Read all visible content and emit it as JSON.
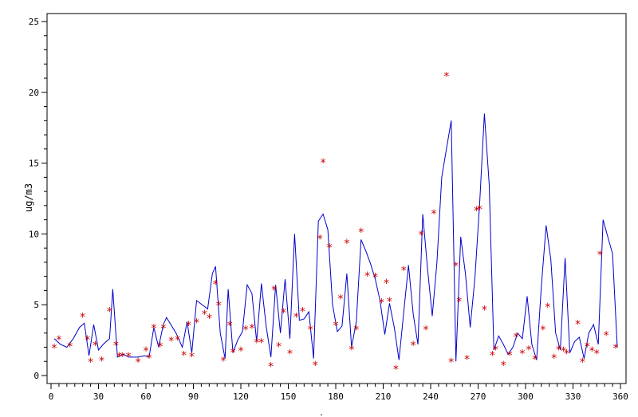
{
  "chart_data": {
    "type": "line",
    "title": "",
    "xlabel": "",
    "ylabel": "ug/m3",
    "xlim": [
      0,
      360
    ],
    "ylim": [
      0,
      25
    ],
    "x_ticks": [
      "0",
      "30",
      "60",
      "90",
      "120",
      "150",
      "180",
      "210",
      "240",
      "270",
      "300",
      "330",
      "360"
    ],
    "y_ticks": [
      "0",
      "5",
      "10",
      "15",
      "20",
      "25"
    ],
    "grid": false,
    "legend": "none",
    "series": [
      {
        "kind": "line",
        "color": "#0000cc",
        "x": [
          2,
          6,
          10,
          14,
          18,
          21,
          24,
          27,
          30,
          33,
          37,
          39,
          42,
          46,
          49,
          55,
          59,
          62,
          65,
          68,
          71,
          73,
          79,
          83,
          86,
          89,
          92,
          99,
          102,
          104,
          107,
          110,
          112,
          115,
          118,
          121,
          124,
          127,
          130,
          133,
          136,
          139,
          142,
          145,
          148,
          151,
          154,
          157,
          160,
          163,
          166,
          169,
          172,
          175,
          178,
          181,
          184,
          187,
          190,
          193,
          196,
          199,
          202,
          205,
          208,
          211,
          214,
          217,
          220,
          223,
          226,
          229,
          232,
          235,
          238,
          241,
          244,
          247,
          250,
          253,
          256,
          259,
          262,
          265,
          268,
          271,
          274,
          277,
          280,
          283,
          286,
          289,
          292,
          295,
          298,
          301,
          304,
          307,
          310,
          313,
          316,
          319,
          322,
          325,
          328,
          331,
          334,
          337,
          340,
          343,
          346,
          349,
          352,
          355,
          358
        ],
        "y": [
          2.6,
          2.2,
          2.0,
          2.6,
          3.4,
          3.7,
          1.4,
          3.6,
          1.8,
          2.2,
          2.6,
          6.1,
          1.3,
          1.5,
          1.3,
          1.3,
          1.4,
          1.3,
          3.4,
          2.0,
          3.6,
          4.1,
          3.0,
          2.0,
          3.8,
          1.6,
          5.3,
          4.7,
          7.2,
          7.7,
          3.0,
          1.2,
          6.1,
          1.6,
          2.5,
          3.1,
          6.4,
          5.8,
          2.4,
          6.5,
          3.5,
          1.3,
          6.4,
          3.0,
          6.8,
          2.6,
          10.0,
          3.9,
          4.0,
          4.5,
          1.2,
          10.9,
          11.4,
          10.3,
          5.0,
          3.1,
          3.5,
          7.2,
          2.0,
          3.8,
          9.6,
          8.8,
          7.9,
          6.8,
          5.3,
          2.9,
          5.1,
          3.4,
          1.1,
          4.5,
          7.8,
          4.3,
          2.2,
          11.4,
          7.6,
          4.2,
          8.0,
          14.0,
          16.0,
          18.0,
          1.0,
          9.8,
          7.2,
          3.4,
          6.9,
          12.2,
          18.5,
          13.5,
          1.8,
          2.8,
          2.2,
          1.5,
          2.0,
          3.0,
          2.6,
          5.6,
          2.2,
          1.1,
          6.3,
          10.6,
          8.2,
          3.0,
          1.8,
          8.3,
          1.6,
          2.4,
          2.7,
          1.2,
          3.0,
          3.6,
          2.2,
          11.0,
          9.8,
          8.6,
          2.0
        ]
      },
      {
        "kind": "scatter",
        "marker": "*",
        "color": "#cc0000",
        "x": [
          2,
          5,
          12,
          20,
          23,
          25,
          28,
          32,
          37,
          41,
          43,
          45,
          49,
          55,
          60,
          62,
          65,
          69,
          71,
          76,
          80,
          84,
          87,
          89,
          92,
          97,
          100,
          104,
          106,
          109,
          113,
          115,
          120,
          123,
          127,
          130,
          133,
          139,
          141,
          144,
          147,
          151,
          155,
          159,
          164,
          167,
          170,
          172,
          176,
          180,
          183,
          187,
          190,
          193,
          196,
          200,
          205,
          209,
          212,
          214,
          218,
          223,
          229,
          234,
          237,
          242,
          253,
          256,
          258,
          263,
          269,
          271,
          274,
          279,
          281,
          286,
          290,
          294,
          298,
          302,
          306,
          311,
          314,
          318,
          321,
          324,
          326,
          333,
          336,
          339,
          342,
          345,
          347,
          351,
          357
        ],
        "y": [
          2.0,
          2.6,
          2.1,
          4.2,
          2.6,
          1.0,
          2.2,
          1.1,
          4.6,
          2.2,
          1.4,
          1.4,
          1.4,
          1.0,
          1.8,
          1.3,
          3.4,
          2.1,
          3.4,
          2.5,
          2.6,
          1.5,
          3.6,
          1.4,
          3.8,
          4.4,
          4.1,
          6.5,
          5.0,
          1.1,
          3.6,
          1.7,
          1.8,
          3.3,
          3.4,
          2.4,
          2.4,
          0.7,
          6.1,
          2.1,
          4.5,
          1.6,
          4.2,
          4.6,
          3.3,
          0.8,
          9.7,
          15.1,
          9.1,
          3.6,
          5.5,
          9.4,
          1.9,
          3.3,
          10.2,
          7.1,
          7.0,
          5.2,
          6.6,
          5.3,
          0.5,
          7.5,
          2.2,
          10.0,
          3.3,
          11.5,
          1.0,
          7.8,
          5.3,
          1.2,
          11.7,
          11.8,
          4.7,
          1.5,
          1.9,
          0.8,
          1.5,
          2.8,
          1.6,
          1.9,
          1.2,
          3.3,
          4.9,
          1.3,
          1.9,
          1.8,
          1.6,
          3.7,
          1.0,
          2.1,
          1.8,
          1.6,
          8.6,
          2.9,
          2.0
        ]
      },
      {
        "kind": "scatter",
        "marker": "*",
        "color": "#cc0000",
        "x": [
          250
        ],
        "y": [
          21.2
        ]
      }
    ],
    "footer_mark": "."
  }
}
